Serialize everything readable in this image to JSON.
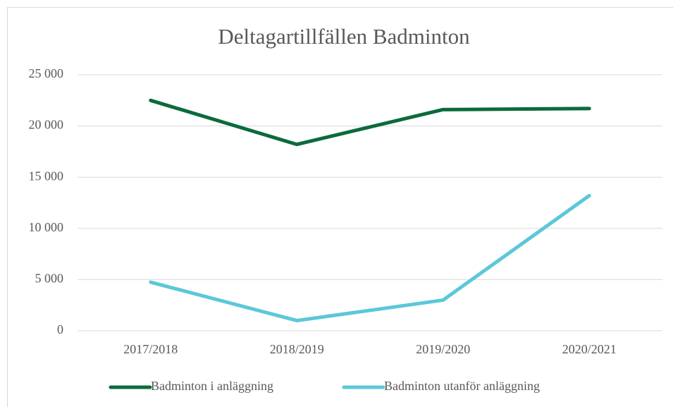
{
  "chart_data": {
    "type": "line",
    "title": "Deltagartillfällen Badminton",
    "categories": [
      "2017/2018",
      "2018/2019",
      "2019/2020",
      "2020/2021"
    ],
    "series": [
      {
        "name": "Badminton i anläggning",
        "color": "#0b6b3a",
        "values": [
          22500,
          18200,
          21600,
          21700
        ]
      },
      {
        "name": "Badminton utanför anläggning",
        "color": "#5bc8d8",
        "values": [
          4750,
          1000,
          3000,
          13200
        ]
      }
    ],
    "ylim": [
      0,
      25000
    ],
    "yticks": [
      {
        "value": 0,
        "label": "0"
      },
      {
        "value": 5000,
        "label": "5 000"
      },
      {
        "value": 10000,
        "label": "10 000"
      },
      {
        "value": 15000,
        "label": "15 000"
      },
      {
        "value": 20000,
        "label": "20 000"
      },
      {
        "value": 25000,
        "label": "25 000"
      }
    ],
    "grid": true,
    "legend": "bottom"
  }
}
